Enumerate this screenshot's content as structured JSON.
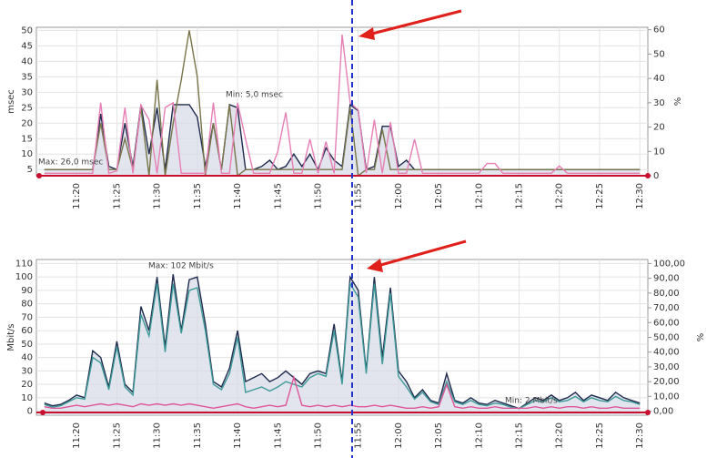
{
  "chart_data": [
    {
      "type": "line",
      "ylabel": "msec",
      "y2label": "%",
      "annotations": [
        "Max: 26,0 msec",
        "Min: 5,0 msec"
      ],
      "xlim": [
        675,
        751
      ],
      "ylim": [
        3,
        51
      ],
      "y2lim": [
        0,
        61
      ],
      "grid": true,
      "xticks": [
        {
          "value": 680,
          "label": "11:20"
        },
        {
          "value": 685,
          "label": "11:25"
        },
        {
          "value": 690,
          "label": "11:30"
        },
        {
          "value": 695,
          "label": "11:35"
        },
        {
          "value": 700,
          "label": "11:40"
        },
        {
          "value": 705,
          "label": "11:45"
        },
        {
          "value": 710,
          "label": "11:50"
        },
        {
          "value": 715,
          "label": "11:55"
        },
        {
          "value": 720,
          "label": "12:00"
        },
        {
          "value": 725,
          "label": "12:05"
        },
        {
          "value": 730,
          "label": "12:10"
        },
        {
          "value": 735,
          "label": "12:15"
        },
        {
          "value": 740,
          "label": "12:20"
        },
        {
          "value": 745,
          "label": "12:25"
        },
        {
          "value": 750,
          "label": "12:30"
        }
      ],
      "yticks": [
        5,
        10,
        15,
        20,
        25,
        30,
        35,
        40,
        45,
        50
      ],
      "y2ticks": [
        0,
        10,
        20,
        30,
        40,
        50,
        60
      ],
      "x": [
        676,
        677,
        678,
        679,
        680,
        681,
        682,
        683,
        684,
        685,
        686,
        687,
        688,
        689,
        690,
        691,
        692,
        693,
        694,
        695,
        696,
        697,
        698,
        699,
        700,
        701,
        702,
        703,
        704,
        705,
        706,
        707,
        708,
        709,
        710,
        711,
        712,
        713,
        714,
        715,
        716,
        717,
        718,
        719,
        720,
        721,
        722,
        723,
        724,
        725,
        726,
        727,
        728,
        729,
        730,
        731,
        732,
        733,
        734,
        735,
        736,
        737,
        738,
        739,
        740,
        741,
        742,
        743,
        744,
        745,
        746,
        747,
        748,
        749,
        750
      ],
      "series": [
        {
          "color": "#1f2a4d",
          "area": true,
          "values": [
            5,
            5,
            5,
            5,
            5,
            5,
            5,
            23,
            6,
            5,
            20,
            6,
            26,
            10,
            25,
            5,
            26,
            26,
            26,
            22,
            6,
            20,
            5,
            26,
            25,
            5,
            5,
            6,
            8,
            5,
            6,
            10,
            6,
            10,
            5,
            12,
            8,
            6,
            26,
            24,
            5,
            6,
            19,
            19,
            6,
            8,
            5,
            5,
            5,
            5,
            5,
            5,
            5,
            5,
            5,
            5,
            5,
            5,
            5,
            5,
            5,
            5,
            5,
            5,
            5,
            5,
            5,
            5,
            5,
            5,
            5,
            5,
            5,
            5,
            5
          ]
        },
        {
          "color": "#77744a",
          "values": [
            5,
            5,
            5,
            5,
            5,
            5,
            5,
            20,
            5,
            5,
            15,
            5,
            25,
            3,
            34,
            3,
            20,
            34,
            50,
            35,
            3,
            20,
            5,
            26,
            3,
            5,
            5,
            5,
            5,
            5,
            5,
            5,
            5,
            5,
            5,
            5,
            5,
            5,
            25,
            3,
            5,
            5,
            18,
            5,
            5,
            5,
            5,
            5,
            5,
            5,
            5,
            5,
            5,
            5,
            5,
            5,
            5,
            5,
            5,
            5,
            5,
            5,
            5,
            5,
            5,
            5,
            5,
            5,
            5,
            5,
            5,
            5,
            5,
            5,
            5
          ]
        },
        {
          "color": "#e77fb5",
          "axis": "y2",
          "values": [
            1,
            1,
            1,
            1,
            1,
            1,
            1,
            30,
            1,
            2,
            28,
            1,
            29,
            23,
            1,
            28,
            30,
            1,
            1,
            1,
            1,
            30,
            1,
            1,
            30,
            15,
            1,
            1,
            1,
            10,
            26,
            1,
            1,
            15,
            1,
            14,
            1,
            58,
            30,
            27,
            1,
            23,
            1,
            22,
            1,
            1,
            15,
            1,
            1,
            1,
            1,
            1,
            1,
            1,
            1,
            5,
            5,
            1,
            1,
            1,
            1,
            1,
            1,
            1,
            4,
            1,
            1,
            1,
            1,
            1,
            1,
            1,
            1,
            1,
            1
          ]
        }
      ]
    },
    {
      "type": "line",
      "ylabel": "Mbit/s",
      "y2label": "%",
      "annotations": [
        "Max: 102 Mbit/s",
        "Min: 2 Mbit/s"
      ],
      "xlim": [
        675,
        751
      ],
      "ylim": [
        -3,
        113
      ],
      "y2lim": [
        -2.73,
        102.73
      ],
      "grid": true,
      "xticks": [
        {
          "value": 680,
          "label": "11:20"
        },
        {
          "value": 685,
          "label": "11:25"
        },
        {
          "value": 690,
          "label": "11:30"
        },
        {
          "value": 695,
          "label": "11:35"
        },
        {
          "value": 700,
          "label": "11:40"
        },
        {
          "value": 705,
          "label": "11:45"
        },
        {
          "value": 710,
          "label": "11:50"
        },
        {
          "value": 715,
          "label": "11:55"
        },
        {
          "value": 720,
          "label": "12:00"
        },
        {
          "value": 725,
          "label": "12:05"
        },
        {
          "value": 730,
          "label": "12:10"
        },
        {
          "value": 735,
          "label": "12:15"
        },
        {
          "value": 740,
          "label": "12:20"
        },
        {
          "value": 745,
          "label": "12:25"
        },
        {
          "value": 750,
          "label": "12:30"
        }
      ],
      "yticks": [
        0,
        10,
        20,
        30,
        40,
        50,
        60,
        70,
        80,
        90,
        100,
        110
      ],
      "y2ticks": [
        {
          "value": 0,
          "label": "0,00"
        },
        {
          "value": 10,
          "label": "10,00"
        },
        {
          "value": 20,
          "label": "20,00"
        },
        {
          "value": 30,
          "label": "30,00"
        },
        {
          "value": 40,
          "label": "40,00"
        },
        {
          "value": 50,
          "label": "50,00"
        },
        {
          "value": 60,
          "label": "60,00"
        },
        {
          "value": 70,
          "label": "70,00"
        },
        {
          "value": 80,
          "label": "80,00"
        },
        {
          "value": 90,
          "label": "90,00"
        },
        {
          "value": 100,
          "label": "100,00"
        }
      ],
      "x": [
        676,
        677,
        678,
        679,
        680,
        681,
        682,
        683,
        684,
        685,
        686,
        687,
        688,
        689,
        690,
        691,
        692,
        693,
        694,
        695,
        696,
        697,
        698,
        699,
        700,
        701,
        702,
        703,
        704,
        705,
        706,
        707,
        708,
        709,
        710,
        711,
        712,
        713,
        714,
        715,
        716,
        717,
        718,
        719,
        720,
        721,
        722,
        723,
        724,
        725,
        726,
        727,
        728,
        729,
        730,
        731,
        732,
        733,
        734,
        735,
        736,
        737,
        738,
        739,
        740,
        741,
        742,
        743,
        744,
        745,
        746,
        747,
        748,
        749,
        750
      ],
      "series": [
        {
          "color": "#1f2a4d",
          "area": true,
          "values": [
            6,
            4,
            5,
            8,
            12,
            10,
            45,
            40,
            18,
            52,
            20,
            14,
            78,
            60,
            100,
            48,
            102,
            60,
            98,
            100,
            65,
            22,
            18,
            32,
            60,
            22,
            25,
            28,
            22,
            25,
            30,
            25,
            20,
            28,
            30,
            28,
            65,
            22,
            100,
            90,
            30,
            100,
            40,
            92,
            30,
            22,
            10,
            16,
            8,
            6,
            28,
            8,
            6,
            10,
            6,
            5,
            8,
            6,
            4,
            2,
            6,
            10,
            8,
            12,
            8,
            10,
            14,
            8,
            12,
            10,
            8,
            14,
            10,
            8,
            6
          ]
        },
        {
          "color": "#3d9a98",
          "values": [
            5,
            3,
            4,
            7,
            10,
            9,
            40,
            36,
            16,
            48,
            18,
            12,
            72,
            56,
            95,
            44,
            95,
            58,
            90,
            92,
            60,
            20,
            16,
            28,
            55,
            14,
            16,
            18,
            15,
            18,
            22,
            20,
            18,
            25,
            28,
            26,
            60,
            20,
            95,
            85,
            28,
            95,
            35,
            88,
            26,
            18,
            9,
            14,
            7,
            5,
            22,
            7,
            5,
            8,
            5,
            4,
            6,
            5,
            3,
            2,
            5,
            8,
            7,
            10,
            7,
            8,
            11,
            7,
            10,
            8,
            7,
            11,
            8,
            7,
            5
          ]
        },
        {
          "color": "#e0559a",
          "axis": "y2",
          "values": [
            3,
            2,
            2,
            3,
            4,
            3,
            4,
            5,
            4,
            5,
            4,
            3,
            5,
            4,
            5,
            4,
            5,
            4,
            5,
            4,
            3,
            2,
            3,
            4,
            5,
            3,
            2,
            3,
            4,
            3,
            4,
            23,
            4,
            3,
            4,
            3,
            4,
            3,
            4,
            3,
            3,
            4,
            3,
            4,
            3,
            2,
            2,
            3,
            2,
            3,
            18,
            3,
            2,
            3,
            2,
            2,
            3,
            2,
            2,
            2,
            2,
            3,
            2,
            3,
            2,
            3,
            3,
            2,
            3,
            2,
            2,
            3,
            2,
            2,
            2
          ]
        }
      ]
    }
  ]
}
